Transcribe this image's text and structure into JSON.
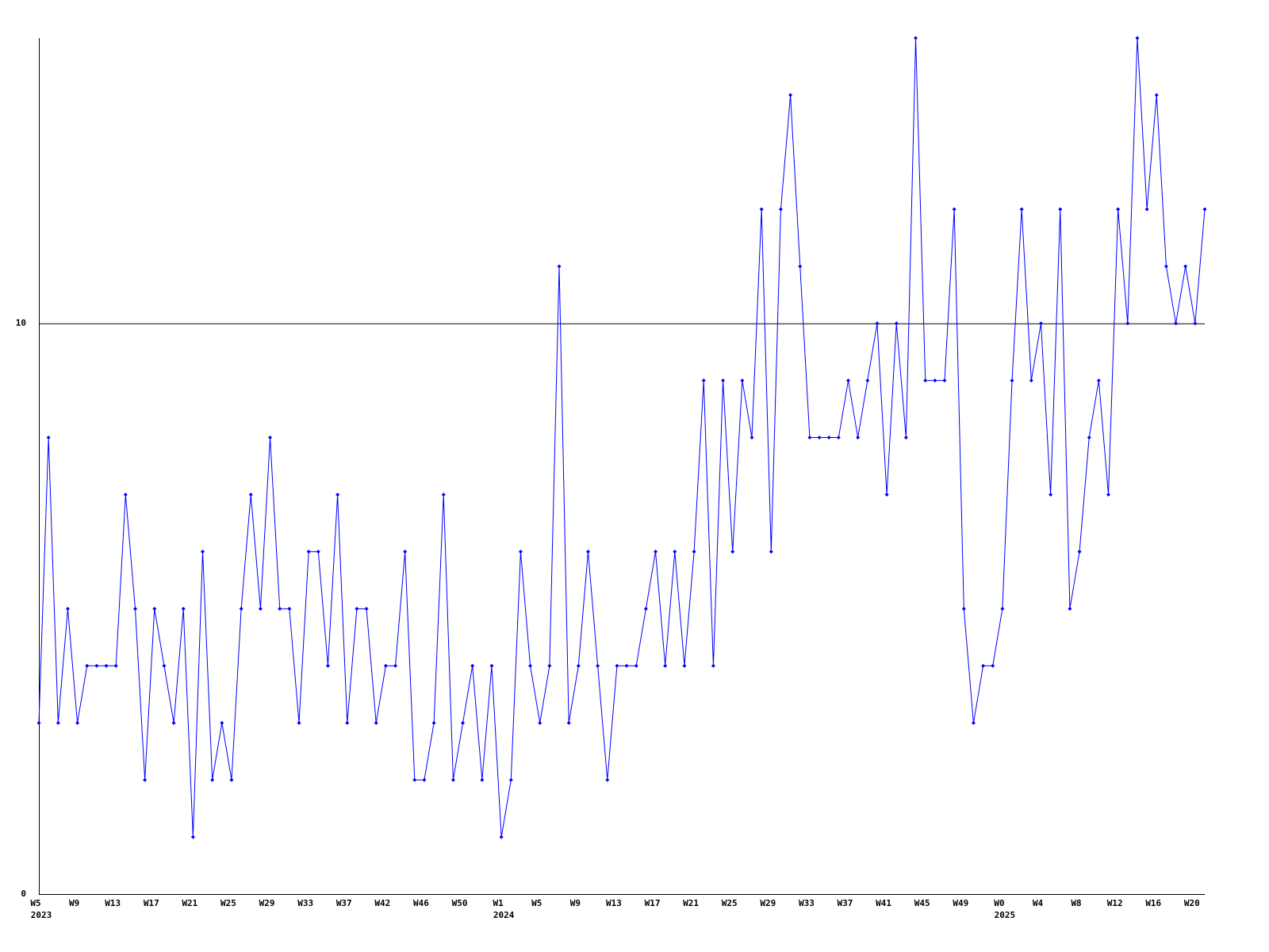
{
  "chart_data": {
    "type": "line",
    "categories": [
      "W5",
      null,
      null,
      null,
      "W9",
      null,
      null,
      null,
      "W13",
      null,
      null,
      null,
      "W17",
      null,
      null,
      null,
      "W21",
      null,
      null,
      null,
      "W25",
      null,
      null,
      null,
      "W29",
      null,
      null,
      null,
      "W33",
      null,
      null,
      null,
      "W37",
      null,
      null,
      null,
      "W42",
      null,
      null,
      null,
      "W46",
      null,
      null,
      null,
      "W50",
      null,
      null,
      null,
      "W1",
      null,
      null,
      null,
      "W5",
      null,
      null,
      null,
      "W9",
      null,
      null,
      null,
      "W13",
      null,
      null,
      null,
      "W17",
      null,
      null,
      null,
      "W21",
      null,
      null,
      null,
      "W25",
      null,
      null,
      null,
      "W29",
      null,
      null,
      null,
      "W33",
      null,
      null,
      null,
      "W37",
      null,
      null,
      null,
      "W41",
      null,
      null,
      null,
      "W45",
      null,
      null,
      null,
      "W49",
      null,
      null,
      null,
      "W0",
      null,
      null,
      null,
      "W4",
      null,
      null,
      null,
      "W8",
      null,
      null,
      null,
      "W12",
      null,
      null,
      null,
      "W16",
      null,
      null,
      null,
      "W20",
      null
    ],
    "year_labels": [
      "2023",
      null,
      null,
      null,
      null,
      null,
      null,
      null,
      null,
      null,
      null,
      null,
      null,
      null,
      null,
      null,
      null,
      null,
      null,
      null,
      null,
      null,
      null,
      null,
      null,
      null,
      null,
      null,
      null,
      null,
      null,
      null,
      null,
      null,
      null,
      null,
      null,
      null,
      null,
      null,
      null,
      null,
      null,
      null,
      null,
      null,
      null,
      null,
      "2024",
      null,
      null,
      null,
      null,
      null,
      null,
      null,
      null,
      null,
      null,
      null,
      null,
      null,
      null,
      null,
      null,
      null,
      null,
      null,
      null,
      null,
      null,
      null,
      null,
      null,
      null,
      null,
      null,
      null,
      null,
      null,
      null,
      null,
      null,
      null,
      null,
      null,
      null,
      null,
      null,
      null,
      null,
      null,
      null,
      null,
      null,
      null,
      null,
      null,
      null,
      null,
      "2025",
      null,
      null,
      null,
      null,
      null,
      null,
      null,
      null,
      null,
      null,
      null,
      null,
      null,
      null,
      null,
      null,
      null,
      null,
      null,
      null,
      null
    ],
    "values": [
      3,
      8,
      3,
      5,
      3,
      4,
      4,
      4,
      4,
      7,
      5,
      2,
      5,
      4,
      3,
      5,
      1,
      6,
      2,
      3,
      2,
      5,
      7,
      5,
      8,
      5,
      5,
      3,
      6,
      6,
      4,
      7,
      3,
      5,
      5,
      3,
      4,
      4,
      6,
      2,
      2,
      3,
      7,
      2,
      3,
      4,
      2,
      4,
      1,
      2,
      6,
      4,
      3,
      4,
      11,
      3,
      4,
      6,
      4,
      2,
      4,
      4,
      4,
      5,
      6,
      4,
      6,
      4,
      6,
      9,
      4,
      9,
      6,
      9,
      8,
      12,
      6,
      12,
      14,
      11,
      8,
      8,
      8,
      8,
      9,
      8,
      9,
      10,
      7,
      10,
      8,
      15,
      9,
      9,
      9,
      12,
      5,
      3,
      4,
      4,
      5,
      9,
      12,
      9,
      10,
      7,
      12,
      5,
      6,
      8,
      9,
      7,
      12,
      10,
      15,
      12,
      14,
      11,
      10,
      11,
      10,
      12
    ],
    "color": "#0000ff",
    "ylim": [
      0,
      15
    ],
    "yticks": [
      0,
      10
    ],
    "grid": true
  }
}
